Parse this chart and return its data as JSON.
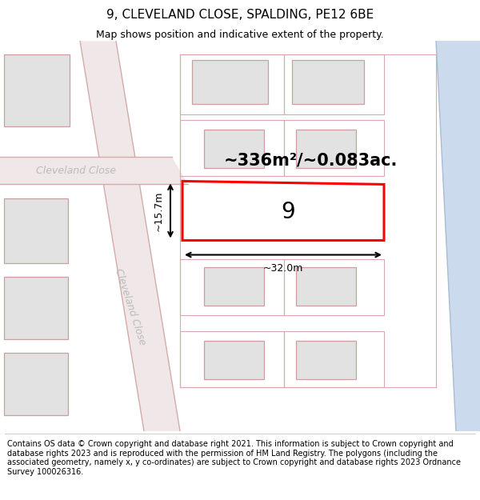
{
  "title": "9, CLEVELAND CLOSE, SPALDING, PE12 6BE",
  "subtitle": "Map shows position and indicative extent of the property.",
  "footer": "Contains OS data © Crown copyright and database right 2021. This information is subject to Crown copyright and database rights 2023 and is reproduced with the permission of HM Land Registry. The polygons (including the associated geometry, namely x, y co-ordinates) are subject to Crown copyright and database rights 2023 Ordnance Survey 100026316.",
  "area_label": "~336m²/~0.083ac.",
  "width_label": "~32.0m",
  "height_label": "~15.7m",
  "plot_number": "9",
  "map_bg": "#f7f7f7",
  "building_fill": "#e2e2e2",
  "building_edge": "#c8a0a0",
  "road_fill": "#f0e8e8",
  "road_edge": "#d4aaaa",
  "plot_edge": "#d4aaaa",
  "highlight_color": "#ff0000",
  "highlight_lw": 2.2,
  "water_color": "#ccdaee",
  "street_color": "#bbbbbb",
  "title_fontsize": 11,
  "subtitle_fontsize": 9,
  "footer_fontsize": 7,
  "area_fontsize": 15,
  "dim_fontsize": 9,
  "plotnum_fontsize": 20
}
